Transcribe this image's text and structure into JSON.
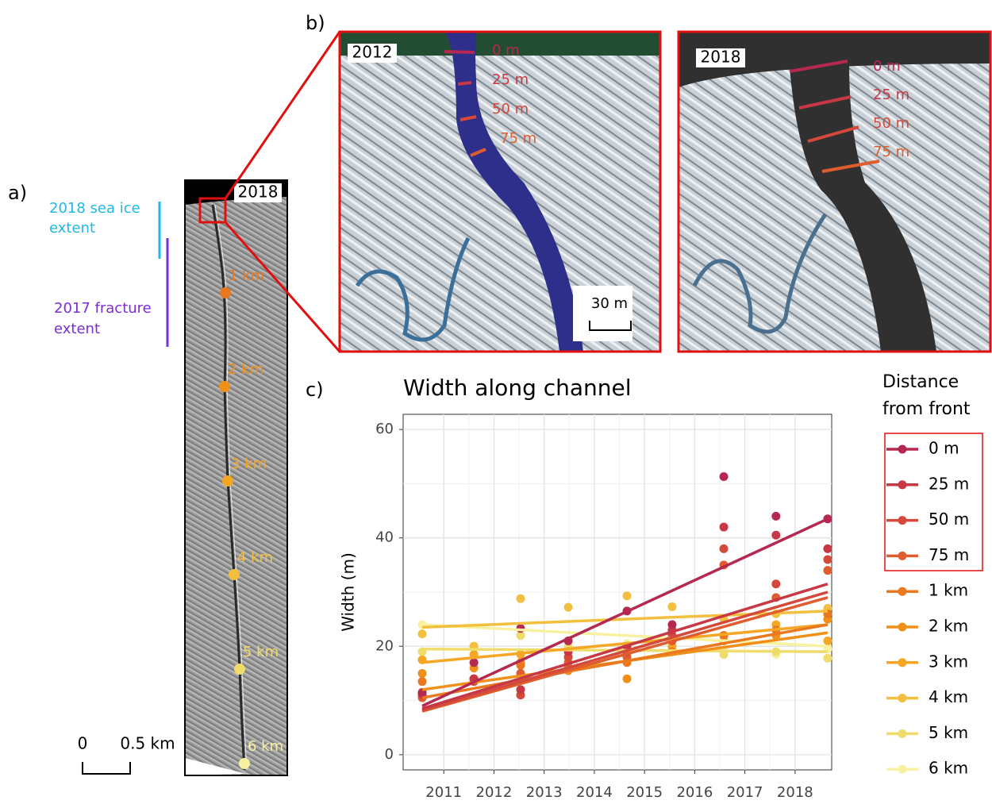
{
  "panels": {
    "a": {
      "label": "a)",
      "year": "2018",
      "sea_ice": [
        "2018 sea ice",
        "extent"
      ],
      "fracture": [
        "2017 fracture",
        "extent"
      ],
      "markers": [
        "1 km",
        "2 km",
        "3 km",
        "4 km",
        "5 km",
        "6 km"
      ],
      "scale": [
        "0",
        "0.5 km"
      ]
    },
    "b": {
      "label": "b)",
      "left_year": "2012",
      "right_year": "2018",
      "profiles": [
        "0 m",
        "25 m",
        "50 m",
        "75 m"
      ],
      "scale": "30 m"
    },
    "c": {
      "label": "c)"
    }
  },
  "chart_data": {
    "type": "scatter",
    "title": "Width along channel",
    "y_label": "Width (m)",
    "legend_title": [
      "Distance",
      "from front"
    ],
    "x": [
      2010.57,
      2011.6,
      2012.53,
      2013.48,
      2014.65,
      2015.55,
      2016.58,
      2017.62,
      2018.65
    ],
    "fit_x": [
      2010.57,
      2018.65
    ],
    "xlim": [
      2010.19,
      2018.73
    ],
    "ylim": [
      -2.8,
      62.8
    ],
    "xticks": [
      2011,
      2012,
      2013,
      2014,
      2015,
      2016,
      2017,
      2018
    ],
    "yticks": [
      0,
      20,
      40,
      60
    ],
    "grid": true,
    "series": [
      {
        "name": "0 m",
        "color": "#b5284f",
        "values": [
          11.3,
          17,
          23.3,
          21,
          26.5,
          24,
          51.3,
          44,
          43.5
        ],
        "fit": [
          9,
          43.5
        ]
      },
      {
        "name": "25 m",
        "color": "#c73844",
        "values": [
          11.5,
          14,
          12,
          19,
          20,
          23,
          42,
          40.5,
          38
        ],
        "fit": [
          8.5,
          31.5
        ]
      },
      {
        "name": "50 m",
        "color": "#d4493a",
        "values": [
          11,
          13.5,
          11,
          18,
          19,
          22,
          38,
          31.5,
          36
        ],
        "fit": [
          8.2,
          30
        ]
      },
      {
        "name": "75 m",
        "color": "#df5c2e",
        "values": [
          10.5,
          14,
          15,
          17,
          18,
          21,
          35,
          29,
          34
        ],
        "fit": [
          8,
          29
        ]
      },
      {
        "name": "1 km",
        "color": "#ea781f",
        "values": [
          13.5,
          14,
          16.5,
          16,
          17,
          19,
          22,
          23,
          26
        ],
        "fit": [
          10.5,
          24
        ]
      },
      {
        "name": "2 km",
        "color": "#f09019",
        "values": [
          15,
          16,
          17,
          15.5,
          14,
          19,
          21,
          22,
          25
        ],
        "fit": [
          12,
          22.5
        ]
      },
      {
        "name": "3 km",
        "color": "#f5a623",
        "values": [
          17.5,
          18.5,
          18.5,
          18,
          19,
          20,
          22,
          24,
          21
        ],
        "fit": [
          17,
          24
        ]
      },
      {
        "name": "4 km",
        "color": "#f2c03e",
        "values": [
          22.3,
          20,
          28.8,
          27.2,
          29.3,
          27.3,
          25,
          26,
          27
        ],
        "fit": [
          23.5,
          26.5
        ]
      },
      {
        "name": "5 km",
        "color": "#efdc6a",
        "values": [
          19,
          20,
          22,
          20,
          18.5,
          19.5,
          18.5,
          19,
          17.8
        ],
        "fit": [
          19.5,
          19
        ]
      },
      {
        "name": "6 km",
        "color": "#f8f1a0",
        "values": [
          24,
          20,
          22,
          21,
          20.5,
          21,
          19,
          18.5,
          19.5
        ],
        "fit": [
          24,
          20
        ]
      }
    ]
  }
}
